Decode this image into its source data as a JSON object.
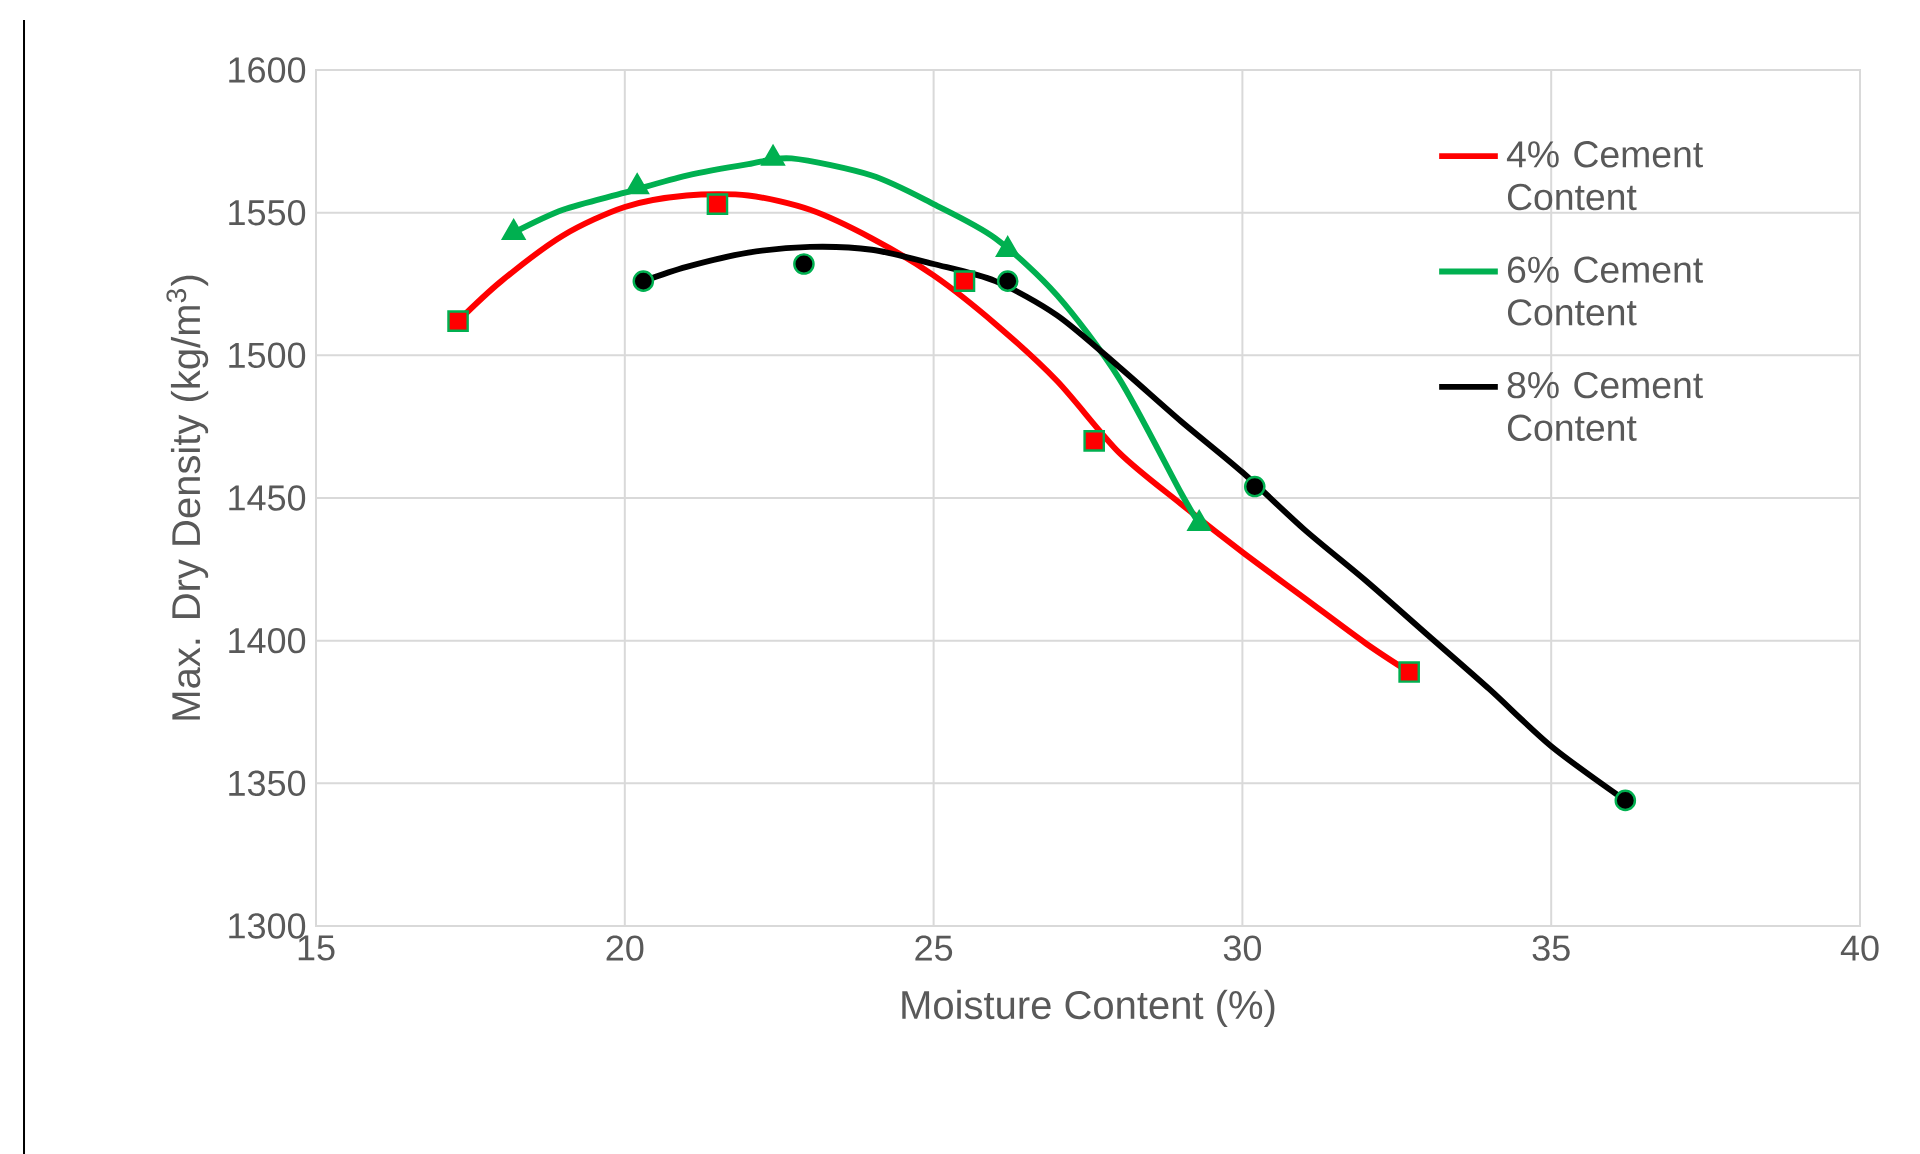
{
  "chart_data": {
    "type": "scatter",
    "xlabel": "Moisture Content (%)",
    "ylabel": "Max. Dry Density (kg/m$^{3}$)",
    "xlim": [
      15,
      40
    ],
    "xticks": [
      15,
      20,
      25,
      30,
      35,
      40
    ],
    "ylim": [
      1300,
      1600
    ],
    "yticks": [
      1300,
      1350,
      1400,
      1450,
      1500,
      1550,
      1600
    ],
    "grid": true,
    "legend": "top right",
    "series": [
      {
        "type": "line",
        "name": "4% Cement Content",
        "color": "#ff0000",
        "x": [
          17.3,
          18,
          19,
          20,
          21,
          22,
          23,
          24,
          25,
          26,
          27,
          28,
          29,
          30,
          31,
          32,
          32.7
        ],
        "values": [
          1512,
          1526,
          1542,
          1552,
          1556,
          1556,
          1551,
          1541,
          1528,
          1511,
          1491,
          1466,
          1448,
          1431,
          1415,
          1399,
          1389
        ]
      },
      {
        "type": "line",
        "name": "6% Cement Content",
        "color": "#00b050",
        "x": [
          18.2,
          19,
          20,
          21,
          22,
          22.7,
          24,
          25,
          26,
          27,
          28,
          29,
          29.3
        ],
        "values": [
          1543,
          1551,
          1557,
          1563,
          1567,
          1569,
          1563,
          1553,
          1541,
          1521,
          1492,
          1452,
          1441
        ]
      },
      {
        "type": "line",
        "name": "8% Cement Content",
        "color": "#000000",
        "x": [
          20.3,
          21,
          22,
          23,
          24,
          25,
          26,
          27,
          28,
          29,
          30,
          31,
          32,
          33,
          34,
          35,
          36.2
        ],
        "values": [
          1526,
          1531,
          1536,
          1538,
          1537,
          1532,
          1526,
          1514,
          1496,
          1477,
          1459,
          1439,
          1421,
          1402,
          1383,
          1363,
          1344
        ]
      },
      {
        "marker": "square",
        "color": "#ff0000",
        "x": [
          17.3,
          21.5,
          25.5,
          27.6,
          32.7
        ],
        "values": [
          1512,
          1553,
          1526,
          1470,
          1389
        ]
      },
      {
        "marker": "triangle",
        "color": "#00b050",
        "x": [
          18.2,
          20.2,
          22.4,
          26.2,
          29.3
        ],
        "values": [
          1543,
          1559,
          1569,
          1537,
          1441
        ]
      },
      {
        "marker": "circle",
        "color": "#000000",
        "x": [
          20.3,
          22.9,
          26.2,
          30.2,
          36.2
        ],
        "values": [
          1526,
          1532,
          1526,
          1454,
          1344
        ]
      }
    ]
  }
}
